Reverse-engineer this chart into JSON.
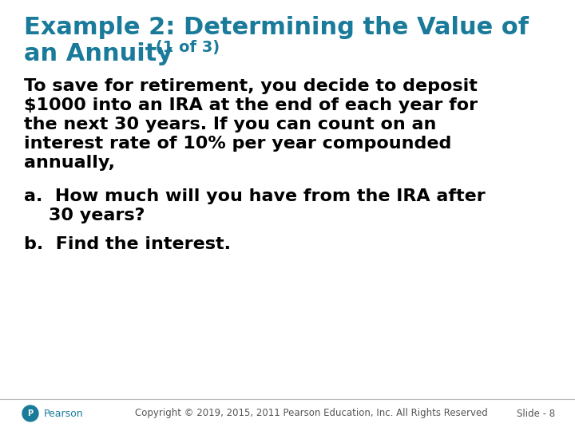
{
  "background_color": "#ffffff",
  "title_color": "#1a7a9a",
  "title_line1": "Example 2: Determining the Value of",
  "title_line2_main": "an Annuity",
  "title_line2_sub": " (1 of 3)",
  "title_fontsize": 22,
  "title_sub_fontsize": 14,
  "body_color": "#000000",
  "body_fontsize": 16,
  "body_text_line1": "To save for retirement, you decide to deposit",
  "body_text_line2": "$1000 into an IRA at the end of each year for",
  "body_text_line3": "the next 30 years. If you can count on an",
  "body_text_line4": "interest rate of 10% per year compounded",
  "body_text_line5": "annually,",
  "qa_fontsize": 16,
  "qa_color": "#000000",
  "qa_a_line1": "a.  How much will you have from the IRA after",
  "qa_a_line2": "    30 years?",
  "qa_b": "b.  Find the interest.",
  "footer_text": "Copyright © 2019, 2015, 2011 Pearson Education, Inc. All Rights Reserved",
  "footer_slide": "Slide - 8",
  "footer_fontsize": 8.5,
  "footer_color": "#555555",
  "pearson_color": "#1a7a9a",
  "pearson_text": "Pearson",
  "pearson_fontsize": 9
}
